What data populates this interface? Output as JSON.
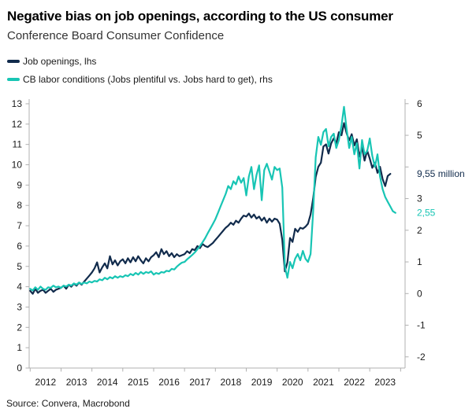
{
  "header": {
    "title": "Negative bias on job openings, according to the US consumer",
    "subtitle": "Conference Board Consumer Confidence"
  },
  "legend": [
    {
      "id": "job-openings",
      "label": "Job openings, lhs",
      "color": "#112b4c"
    },
    {
      "id": "cb-labor-conditions",
      "label": "CB labor conditions (Jobs plentiful vs. Jobs hard to get), rhs",
      "color": "#18c5b4"
    }
  ],
  "annotations": {
    "lhs_last_label": "9,55 million",
    "rhs_last_label": "2,55"
  },
  "source": "Source: Convera, Macrobond",
  "colors": {
    "navy": "#112b4c",
    "teal": "#18c5b4",
    "axis_line": "#b0b0b0",
    "axis_text": "#1a1a1a",
    "background": "#ffffff"
  },
  "chart_data": {
    "type": "line",
    "grid": false,
    "legend_position": "top-left",
    "x_years": [
      "2012",
      "2013",
      "2014",
      "2015",
      "2016",
      "2017",
      "2018",
      "2019",
      "2020",
      "2021",
      "2022",
      "2023"
    ],
    "left_axis": {
      "range": [
        0,
        13
      ],
      "ticks": [
        0,
        1,
        2,
        3,
        4,
        5,
        6,
        7,
        8,
        9,
        10,
        11,
        12,
        13
      ]
    },
    "right_axis": {
      "range": [
        -2,
        6
      ],
      "ticks": [
        {
          "v": -2,
          "label": "-2"
        },
        {
          "v": -1,
          "label": "-1"
        },
        {
          "v": 0,
          "label": "0"
        },
        {
          "v": 1,
          "label": "1"
        },
        {
          "v": 2,
          "label": "2"
        },
        {
          "v": 3,
          "label": "3"
        },
        {
          "v": 4,
          "label": ""
        },
        {
          "v": 5,
          "label": "5"
        },
        {
          "v": 6,
          "label": "6"
        }
      ]
    },
    "series": [
      {
        "id": "job-openings",
        "name": "Job openings, lhs",
        "axis": "left",
        "unit": "million",
        "color": "#112b4c",
        "start": "2012-01",
        "frequency": "monthly",
        "last_value": 9.55,
        "values": [
          3.8,
          3.65,
          3.9,
          3.7,
          3.8,
          3.85,
          3.7,
          3.8,
          3.9,
          3.75,
          3.85,
          3.9,
          3.95,
          4.05,
          3.9,
          4.1,
          4.0,
          4.15,
          4.05,
          4.2,
          4.1,
          4.25,
          4.4,
          4.55,
          4.7,
          4.9,
          5.2,
          4.7,
          4.95,
          5.15,
          4.9,
          5.5,
          5.1,
          5.3,
          5.05,
          5.25,
          5.35,
          5.15,
          5.4,
          5.2,
          5.45,
          5.25,
          5.5,
          5.3,
          5.15,
          5.4,
          5.25,
          5.45,
          5.55,
          5.7,
          5.45,
          5.85,
          5.6,
          5.75,
          5.5,
          5.65,
          5.45,
          5.6,
          5.5,
          5.55,
          5.6,
          5.75,
          5.65,
          5.85,
          5.8,
          6.0,
          5.9,
          6.1,
          6.0,
          5.95,
          6.05,
          6.15,
          6.3,
          6.45,
          6.6,
          6.75,
          6.9,
          7.0,
          7.15,
          7.05,
          7.25,
          7.15,
          7.35,
          7.5,
          7.45,
          7.6,
          7.4,
          7.55,
          7.35,
          7.45,
          7.25,
          7.4,
          7.15,
          7.35,
          7.2,
          7.35,
          7.3,
          7.1,
          6.3,
          4.75,
          5.2,
          6.4,
          6.2,
          6.85,
          6.7,
          6.9,
          6.85,
          6.95,
          7.1,
          7.55,
          8.35,
          9.4,
          9.9,
          10.1,
          10.9,
          11.0,
          10.55,
          11.05,
          11.3,
          11.05,
          11.6,
          11.45,
          12.05,
          11.55,
          11.2,
          11.5,
          10.95,
          11.25,
          10.4,
          10.85,
          10.2,
          10.7,
          10.3,
          9.85,
          10.1,
          9.6,
          9.9,
          9.3,
          8.95,
          9.45,
          9.55
        ]
      },
      {
        "id": "cb-labor-conditions",
        "name": "CB labor conditions (Jobs plentiful vs. Jobs hard to get), rhs",
        "axis": "right",
        "unit": "",
        "color": "#18c5b4",
        "start": "2012-01",
        "frequency": "monthly",
        "last_value": 2.55,
        "values": [
          0.15,
          0.1,
          0.2,
          0.12,
          0.22,
          0.15,
          0.12,
          0.2,
          0.18,
          0.25,
          0.2,
          0.22,
          0.18,
          0.25,
          0.22,
          0.28,
          0.25,
          0.32,
          0.28,
          0.35,
          0.3,
          0.35,
          0.32,
          0.38,
          0.35,
          0.4,
          0.38,
          0.45,
          0.42,
          0.5,
          0.45,
          0.52,
          0.48,
          0.55,
          0.5,
          0.55,
          0.52,
          0.58,
          0.55,
          0.62,
          0.58,
          0.65,
          0.6,
          0.68,
          0.62,
          0.68,
          0.65,
          0.7,
          0.6,
          0.65,
          0.62,
          0.68,
          0.66,
          0.72,
          0.7,
          0.78,
          0.76,
          0.85,
          0.92,
          0.98,
          1.0,
          1.08,
          1.15,
          1.22,
          1.3,
          1.4,
          1.5,
          1.62,
          1.75,
          1.9,
          2.05,
          2.2,
          2.35,
          2.55,
          2.75,
          2.95,
          3.15,
          3.4,
          3.3,
          3.55,
          3.45,
          3.7,
          3.5,
          3.65,
          3.1,
          3.7,
          4.0,
          3.3,
          3.75,
          4.05,
          2.95,
          3.9,
          4.1,
          3.85,
          3.6,
          4.0,
          3.9,
          3.95,
          3.35,
          0.85,
          0.5,
          1.0,
          0.8,
          1.1,
          1.25,
          1.05,
          1.35,
          1.1,
          1.0,
          1.25,
          2.6,
          4.3,
          4.95,
          4.7,
          5.1,
          5.2,
          4.65,
          4.95,
          5.05,
          4.6,
          4.85,
          5.3,
          5.9,
          5.2,
          4.6,
          4.95,
          4.4,
          4.75,
          3.95,
          4.85,
          4.4,
          4.5,
          4.9,
          4.35,
          4.0,
          4.4,
          3.7,
          3.3,
          3.05,
          2.9,
          2.75,
          2.6,
          2.55
        ]
      }
    ]
  }
}
